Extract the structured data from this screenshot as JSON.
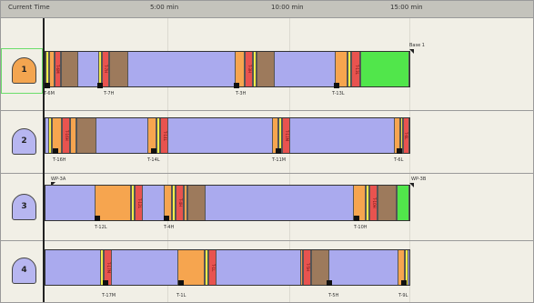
{
  "header": {
    "title": "Current Time",
    "ticks": [
      "5:00 min",
      "10:00 min",
      "15:00 min"
    ]
  },
  "units": [
    {
      "id": "1",
      "badge_color": "#f3a550",
      "selected": true,
      "top_label": "Base 1",
      "labels": [
        "T-6M",
        "T-7H",
        "T-3H",
        "T-13L"
      ],
      "seg_labels": [
        "T-6M",
        "T-7H",
        "T-3H",
        "T-13L"
      ]
    },
    {
      "id": "2",
      "badge_color": "#b7b6f0",
      "selected": false,
      "top_label": "",
      "labels": [
        "T-16H",
        "T-14L",
        "T-11M",
        "T-6L"
      ],
      "seg_labels": [
        "T-16H",
        "T-14L",
        "T-11M",
        "T-6L"
      ]
    },
    {
      "id": "3",
      "badge_color": "#b7b6f0",
      "selected": false,
      "top_label": "WP-3A",
      "top_label_right": "WP-3B",
      "labels": [
        "T-12L",
        "T-4H",
        "T-10H"
      ],
      "seg_labels": [
        "T-12L",
        "T-4H",
        "T-10H"
      ]
    },
    {
      "id": "4",
      "badge_color": "#b7b6f0",
      "selected": false,
      "top_label": "",
      "labels": [
        "T-17M",
        "T-1L",
        "T-5H",
        "T-9L"
      ],
      "seg_labels": [
        "T-17M",
        "T-1L",
        "T-5H",
        "T-9L"
      ]
    }
  ],
  "colors": {
    "orange": "#f6a54f",
    "yellow": "#f2ee4a",
    "red": "#e8534f",
    "brown": "#9d7a5c",
    "green": "#51e64b",
    "lavender": "#aaaaee"
  }
}
